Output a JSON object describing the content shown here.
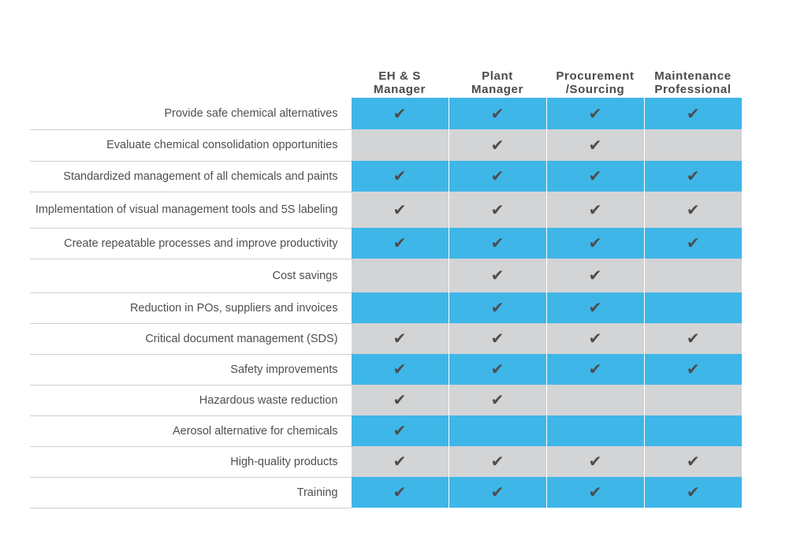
{
  "colors": {
    "row_blue": "#3fb6e8",
    "row_grey": "#d3d4d5",
    "text": "#4a4a4a"
  },
  "check_glyph": "✔",
  "columns": [
    "EH & S\nManager",
    "Plant\nManager",
    "Procurement\n/Sourcing",
    "Maintenance\nProfessional"
  ],
  "rows": [
    {
      "label": "Provide safe chemical alternatives",
      "checks": [
        true,
        true,
        true,
        true
      ]
    },
    {
      "label": "Evaluate chemical consolidation opportunities",
      "checks": [
        false,
        true,
        true,
        false
      ]
    },
    {
      "label": "Standardized management of all chemicals and paints",
      "checks": [
        true,
        true,
        true,
        true
      ]
    },
    {
      "label": "Implementation of visual management tools and 5S labeling",
      "checks": [
        true,
        true,
        true,
        true
      ]
    },
    {
      "label": "Create repeatable processes and improve productivity",
      "checks": [
        true,
        true,
        true,
        true
      ]
    },
    {
      "label": "Cost savings",
      "checks": [
        false,
        true,
        true,
        false
      ]
    },
    {
      "label": "Reduction in POs, suppliers and invoices",
      "checks": [
        false,
        true,
        true,
        false
      ]
    },
    {
      "label": "Critical document management (SDS)",
      "checks": [
        true,
        true,
        true,
        true
      ]
    },
    {
      "label": "Safety improvements",
      "checks": [
        true,
        true,
        true,
        true
      ]
    },
    {
      "label": "Hazardous waste reduction",
      "checks": [
        true,
        true,
        false,
        false
      ]
    },
    {
      "label": "Aerosol alternative for chemicals",
      "checks": [
        true,
        false,
        false,
        false
      ]
    },
    {
      "label": "High-quality products",
      "checks": [
        true,
        true,
        true,
        true
      ]
    },
    {
      "label": "Training",
      "checks": [
        true,
        true,
        true,
        true
      ]
    }
  ]
}
